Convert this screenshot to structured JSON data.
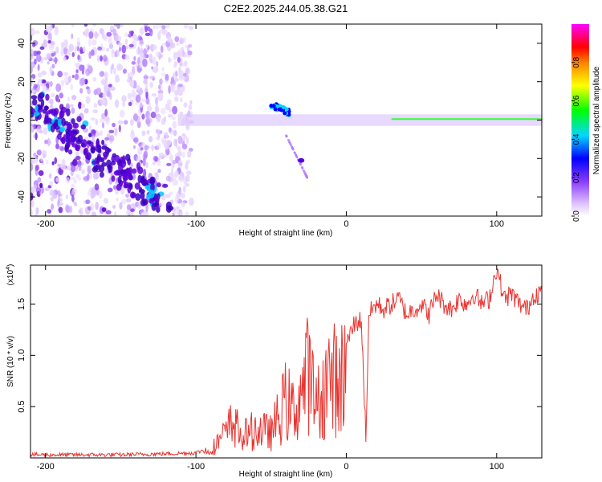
{
  "title": "C2E2.2025.244.05.38.G21",
  "chart_data": [
    {
      "type": "heatmap",
      "xlabel": "Height of straight line (km)",
      "ylabel": "Frequency (Hz)",
      "xlim": [
        -210,
        130
      ],
      "ylim": [
        -50,
        50
      ],
      "xticks": [
        -200,
        -100,
        0,
        100
      ],
      "yticks": [
        -40,
        -20,
        0,
        20,
        40
      ],
      "colorbar": {
        "label": "Normalized spectral amplitude",
        "ticks": [
          0.0,
          0.2,
          0.4,
          0.6,
          0.8
        ],
        "range": [
          0,
          1
        ],
        "colormap": [
          "#ffffff",
          "#b07cff",
          "#6a1fd8",
          "#0000ff",
          "#00e5ff",
          "#00ff00",
          "#ffff00",
          "#ff0000",
          "#ff00ff"
        ]
      },
      "features": {
        "noise_region_x": [
          -210,
          -103
        ],
        "ridge_region_x": [
          -112,
          130
        ],
        "ridge_center_freq": 0,
        "diagonal_feature": {
          "x": [
            -210,
            -120
          ],
          "freq": [
            10,
            -45
          ]
        }
      }
    },
    {
      "type": "line",
      "xlabel": "Height of straight line (km)",
      "ylabel": "SNR (10 * v/v)",
      "multiplier_label": "(x10",
      "multiplier_exp": "4",
      "multiplier_close": ")",
      "xlim": [
        -210,
        130
      ],
      "ylim": [
        0,
        1.88
      ],
      "xticks": [
        -200,
        -100,
        0,
        100
      ],
      "yticks": [
        0.5,
        1.0,
        1.5
      ],
      "color": "#e8332f",
      "series": [
        {
          "x": [
            -210,
            -180,
            -150,
            -120,
            -100,
            -90,
            -80,
            -75,
            -70,
            -60,
            -50,
            -45,
            -40,
            -35,
            -30,
            -25,
            -20,
            -15,
            -10,
            -5,
            0,
            5,
            10,
            13,
            15,
            20,
            25,
            30,
            35,
            40,
            45,
            50,
            55,
            60,
            65,
            70,
            75,
            80,
            85,
            90,
            95,
            100,
            105,
            110,
            115,
            120,
            125,
            130
          ],
          "values": [
            0.03,
            0.03,
            0.03,
            0.04,
            0.05,
            0.1,
            0.3,
            0.45,
            0.25,
            0.35,
            0.3,
            0.5,
            0.7,
            0.55,
            0.8,
            1.05,
            0.6,
            0.85,
            1.0,
            0.9,
            1.1,
            1.3,
            1.35,
            0.2,
            1.4,
            1.5,
            1.45,
            1.5,
            1.55,
            1.4,
            1.45,
            1.5,
            1.4,
            1.6,
            1.5,
            1.45,
            1.55,
            1.5,
            1.6,
            1.5,
            1.55,
            1.85,
            1.55,
            1.6,
            1.5,
            1.45,
            1.6,
            1.62
          ]
        }
      ]
    }
  ]
}
